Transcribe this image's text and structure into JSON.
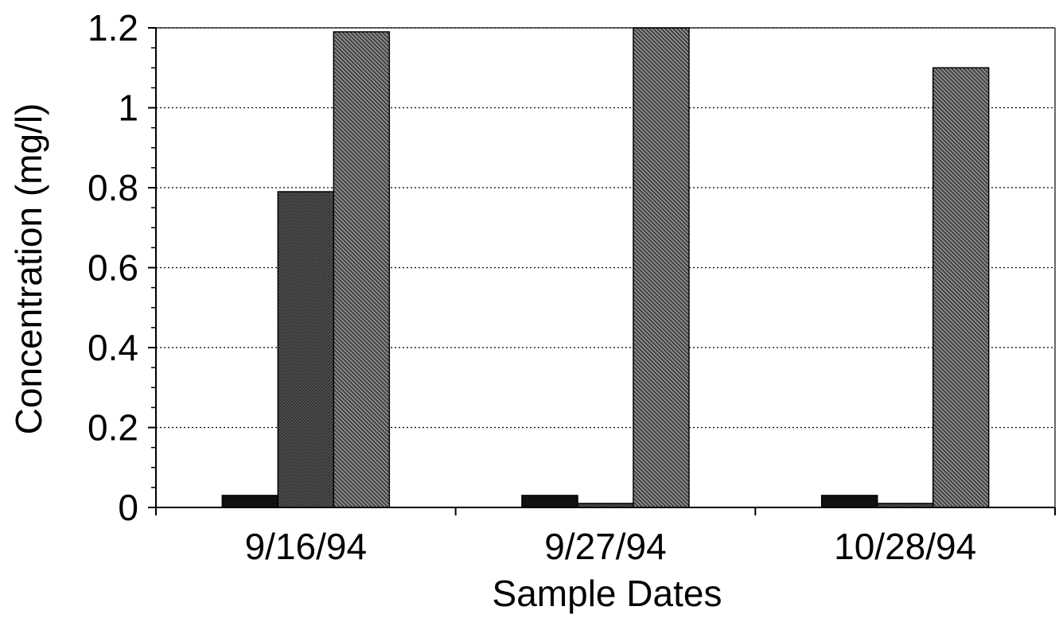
{
  "chart_data": {
    "type": "bar",
    "title": "",
    "xlabel": "Sample Dates",
    "ylabel": "Concentration (mg/l)",
    "categories": [
      "9/16/94",
      "9/27/94",
      "10/28/94"
    ],
    "series": [
      {
        "values": [
          0.03,
          0.03,
          0.03
        ],
        "color": "#111111"
      },
      {
        "values": [
          0.79,
          0.01,
          0.01
        ],
        "color": "#555555"
      },
      {
        "values": [
          1.19,
          1.2,
          1.1
        ],
        "color": "#777777"
      }
    ],
    "ylim": [
      0,
      1.2
    ],
    "yticks": [
      "0",
      "0.2",
      "0.4",
      "0.6",
      "0.8",
      "1",
      "1.2"
    ],
    "grid": true
  }
}
